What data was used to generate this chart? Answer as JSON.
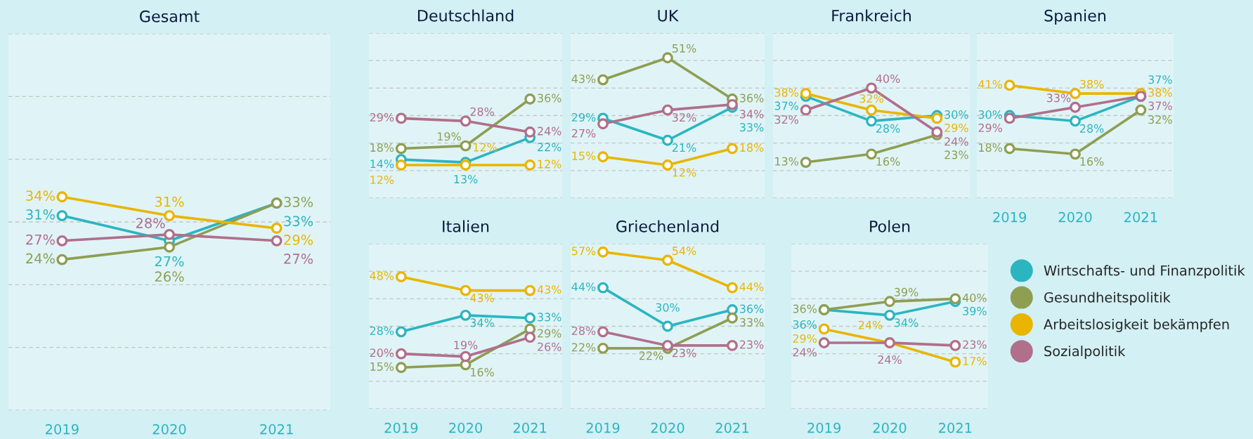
{
  "chart_data": [
    {
      "type": "line",
      "title": "Gesamt",
      "legend": "bottom right",
      "categories": [
        "2019",
        "2020",
        "2021"
      ],
      "ylim": [
        0,
        60
      ],
      "yticks": [
        {
          "value": 0,
          "label": null
        },
        {
          "value": 10,
          "label": null
        },
        {
          "value": 20,
          "label": null
        },
        {
          "value": 30,
          "label": null
        },
        {
          "value": 40,
          "label": null
        },
        {
          "value": 50,
          "label": null
        },
        {
          "value": 60,
          "label": null
        }
      ],
      "grid": "y",
      "marker": "circle",
      "line_style": "solid",
      "tick_labels": "x",
      "series": [
        {
          "name": "Wirtschafts- und Finanzpolitik",
          "color": "#2bb5c0",
          "values": [
            31,
            27,
            33
          ],
          "value_labels": [
            "31%",
            "27%",
            "33%"
          ]
        },
        {
          "name": "Gesundheitspolitik",
          "color": "#8e9e52",
          "values": [
            24,
            26,
            33
          ],
          "value_labels": [
            "24%",
            "26%",
            "33%"
          ]
        },
        {
          "name": "Arbeitslosigkeit bekämpfen",
          "color": "#e9b500",
          "values": [
            34,
            31,
            29
          ],
          "value_labels": [
            "34%",
            "31%",
            "29%"
          ]
        },
        {
          "name": "Sozialpolitik",
          "color": "#b06f8b",
          "values": [
            27,
            28,
            27
          ],
          "value_labels": [
            "27%",
            "28%",
            "27%"
          ]
        }
      ]
    },
    {
      "type": "line",
      "title": "Deutschland",
      "categories": [
        null,
        null,
        null
      ],
      "ylim": [
        0,
        60
      ],
      "yticks": [
        {
          "value": 0,
          "label": null
        },
        {
          "value": 10,
          "label": null
        },
        {
          "value": 20,
          "label": null
        },
        {
          "value": 30,
          "label": null
        },
        {
          "value": 40,
          "label": null
        },
        {
          "value": 50,
          "label": null
        },
        {
          "value": 60,
          "label": null
        }
      ],
      "grid": "y",
      "marker": "circle",
      "line_style": "solid",
      "tick_labels": false,
      "series": [
        {
          "color": "#2bb5c0",
          "values": [
            14,
            13,
            22
          ],
          "value_labels": [
            "14%",
            "13%",
            "22%"
          ]
        },
        {
          "color": "#8e9e52",
          "values": [
            18,
            19,
            36
          ],
          "value_labels": [
            "18%",
            "19%",
            "36%"
          ]
        },
        {
          "color": "#e9b500",
          "values": [
            12,
            12,
            12
          ],
          "value_labels": [
            "12%",
            "12%",
            "12%"
          ]
        },
        {
          "color": "#b06f8b",
          "values": [
            29,
            28,
            24
          ],
          "value_labels": [
            "29%",
            "28%",
            "24%"
          ]
        }
      ]
    },
    {
      "type": "line",
      "title": "UK",
      "categories": [
        null,
        null,
        null
      ],
      "ylim": [
        0,
        60
      ],
      "yticks": [
        {
          "value": 0,
          "label": null
        },
        {
          "value": 10,
          "label": null
        },
        {
          "value": 20,
          "label": null
        },
        {
          "value": 30,
          "label": null
        },
        {
          "value": 40,
          "label": null
        },
        {
          "value": 50,
          "label": null
        },
        {
          "value": 60,
          "label": null
        }
      ],
      "grid": "y",
      "marker": "circle",
      "line_style": "solid",
      "tick_labels": false,
      "series": [
        {
          "color": "#2bb5c0",
          "values": [
            29,
            21,
            33
          ],
          "value_labels": [
            "29%",
            "21%",
            "33%"
          ]
        },
        {
          "color": "#8e9e52",
          "values": [
            43,
            51,
            36
          ],
          "value_labels": [
            "43%",
            "51%",
            "36%"
          ]
        },
        {
          "color": "#e9b500",
          "values": [
            15,
            12,
            18
          ],
          "value_labels": [
            "15%",
            "12%",
            "18%"
          ]
        },
        {
          "color": "#b06f8b",
          "values": [
            27,
            32,
            34
          ],
          "value_labels": [
            "27%",
            "32%",
            "34%"
          ]
        }
      ]
    },
    {
      "type": "line",
      "title": "Frankreich",
      "categories": [
        null,
        null,
        null
      ],
      "ylim": [
        0,
        60
      ],
      "yticks": [
        {
          "value": 0,
          "label": null
        },
        {
          "value": 10,
          "label": null
        },
        {
          "value": 20,
          "label": null
        },
        {
          "value": 30,
          "label": null
        },
        {
          "value": 40,
          "label": null
        },
        {
          "value": 50,
          "label": null
        },
        {
          "value": 60,
          "label": null
        }
      ],
      "grid": "y",
      "marker": "circle",
      "line_style": "solid",
      "tick_labels": false,
      "series": [
        {
          "color": "#2bb5c0",
          "values": [
            37,
            28,
            30
          ],
          "value_labels": [
            "37%",
            "28%",
            "30%"
          ]
        },
        {
          "color": "#8e9e52",
          "values": [
            13,
            16,
            23
          ],
          "value_labels": [
            "13%",
            "16%",
            "23%"
          ]
        },
        {
          "color": "#e9b500",
          "values": [
            38,
            32,
            29
          ],
          "value_labels": [
            "38%",
            "32%",
            "29%"
          ]
        },
        {
          "color": "#b06f8b",
          "values": [
            32,
            40,
            24
          ],
          "value_labels": [
            "32%",
            "40%",
            "24%"
          ]
        }
      ]
    },
    {
      "type": "line",
      "title": "Spanien",
      "categories": [
        "2019",
        "2020",
        "2021"
      ],
      "ylim": [
        0,
        60
      ],
      "yticks": [
        {
          "value": 0,
          "label": null
        },
        {
          "value": 10,
          "label": null
        },
        {
          "value": 20,
          "label": null
        },
        {
          "value": 30,
          "label": null
        },
        {
          "value": 40,
          "label": null
        },
        {
          "value": 50,
          "label": null
        },
        {
          "value": 60,
          "label": null
        }
      ],
      "grid": "y",
      "marker": "circle",
      "line_style": "solid",
      "tick_labels": "x",
      "series": [
        {
          "color": "#2bb5c0",
          "values": [
            30,
            28,
            37
          ],
          "value_labels": [
            "30%",
            "28%",
            "37%"
          ]
        },
        {
          "color": "#8e9e52",
          "values": [
            18,
            16,
            32
          ],
          "value_labels": [
            "18%",
            "16%",
            "32%"
          ]
        },
        {
          "color": "#e9b500",
          "values": [
            41,
            38,
            38
          ],
          "value_labels": [
            "41%",
            "38%",
            "38%"
          ]
        },
        {
          "color": "#b06f8b",
          "values": [
            29,
            33,
            37
          ],
          "value_labels": [
            "29%",
            "33%",
            "37%"
          ]
        }
      ]
    },
    {
      "type": "line",
      "title": "Italien",
      "categories": [
        "2019",
        "2020",
        "2021"
      ],
      "ylim": [
        0,
        60
      ],
      "yticks": [
        {
          "value": 0,
          "label": null
        },
        {
          "value": 10,
          "label": null
        },
        {
          "value": 20,
          "label": null
        },
        {
          "value": 30,
          "label": null
        },
        {
          "value": 40,
          "label": null
        },
        {
          "value": 50,
          "label": null
        },
        {
          "value": 60,
          "label": null
        }
      ],
      "grid": "y",
      "marker": "circle",
      "line_style": "solid",
      "tick_labels": "x",
      "series": [
        {
          "color": "#2bb5c0",
          "values": [
            28,
            34,
            33
          ],
          "value_labels": [
            "28%",
            "34%",
            "33%"
          ]
        },
        {
          "color": "#8e9e52",
          "values": [
            15,
            16,
            29
          ],
          "value_labels": [
            "15%",
            "16%",
            "29%"
          ]
        },
        {
          "color": "#e9b500",
          "values": [
            48,
            43,
            43
          ],
          "value_labels": [
            "48%",
            "43%",
            "43%"
          ]
        },
        {
          "color": "#b06f8b",
          "values": [
            20,
            19,
            26
          ],
          "value_labels": [
            "20%",
            "19%",
            "26%"
          ]
        }
      ]
    },
    {
      "type": "line",
      "title": "Griechenland",
      "categories": [
        "2019",
        "2020",
        "2021"
      ],
      "ylim": [
        0,
        60
      ],
      "yticks": [
        {
          "value": 0,
          "label": null
        },
        {
          "value": 10,
          "label": null
        },
        {
          "value": 20,
          "label": null
        },
        {
          "value": 30,
          "label": null
        },
        {
          "value": 40,
          "label": null
        },
        {
          "value": 50,
          "label": null
        },
        {
          "value": 60,
          "label": null
        }
      ],
      "grid": "y",
      "marker": "circle",
      "line_style": "solid",
      "tick_labels": "x",
      "series": [
        {
          "color": "#2bb5c0",
          "values": [
            44,
            30,
            36
          ],
          "value_labels": [
            "44%",
            "30%",
            "36%"
          ]
        },
        {
          "color": "#8e9e52",
          "values": [
            22,
            22,
            33
          ],
          "value_labels": [
            "22%",
            "22%",
            "33%"
          ]
        },
        {
          "color": "#e9b500",
          "values": [
            57,
            54,
            44
          ],
          "value_labels": [
            "57%",
            "54%",
            "44%"
          ]
        },
        {
          "color": "#b06f8b",
          "values": [
            28,
            23,
            23
          ],
          "value_labels": [
            "28%",
            "23%",
            "23%"
          ]
        }
      ]
    },
    {
      "type": "line",
      "title": "Polen",
      "categories": [
        "2019",
        "2020",
        "2021"
      ],
      "ylim": [
        0,
        60
      ],
      "yticks": [
        {
          "value": 0,
          "label": null
        },
        {
          "value": 10,
          "label": null
        },
        {
          "value": 20,
          "label": null
        },
        {
          "value": 30,
          "label": null
        },
        {
          "value": 40,
          "label": null
        },
        {
          "value": 50,
          "label": null
        },
        {
          "value": 60,
          "label": null
        }
      ],
      "grid": "y",
      "marker": "circle",
      "line_style": "solid",
      "tick_labels": "x",
      "series": [
        {
          "color": "#2bb5c0",
          "values": [
            36,
            34,
            39
          ],
          "value_labels": [
            "36%",
            "34%",
            "39%"
          ]
        },
        {
          "color": "#8e9e52",
          "values": [
            36,
            39,
            40
          ],
          "value_labels": [
            "36%",
            "39%",
            "40%"
          ]
        },
        {
          "color": "#e9b500",
          "values": [
            29,
            24,
            17
          ],
          "value_labels": [
            "29%",
            "24%",
            "17%"
          ]
        },
        {
          "color": "#b06f8b",
          "values": [
            24,
            24,
            23
          ],
          "value_labels": [
            "24%",
            "24%",
            "23%"
          ]
        }
      ]
    }
  ]
}
